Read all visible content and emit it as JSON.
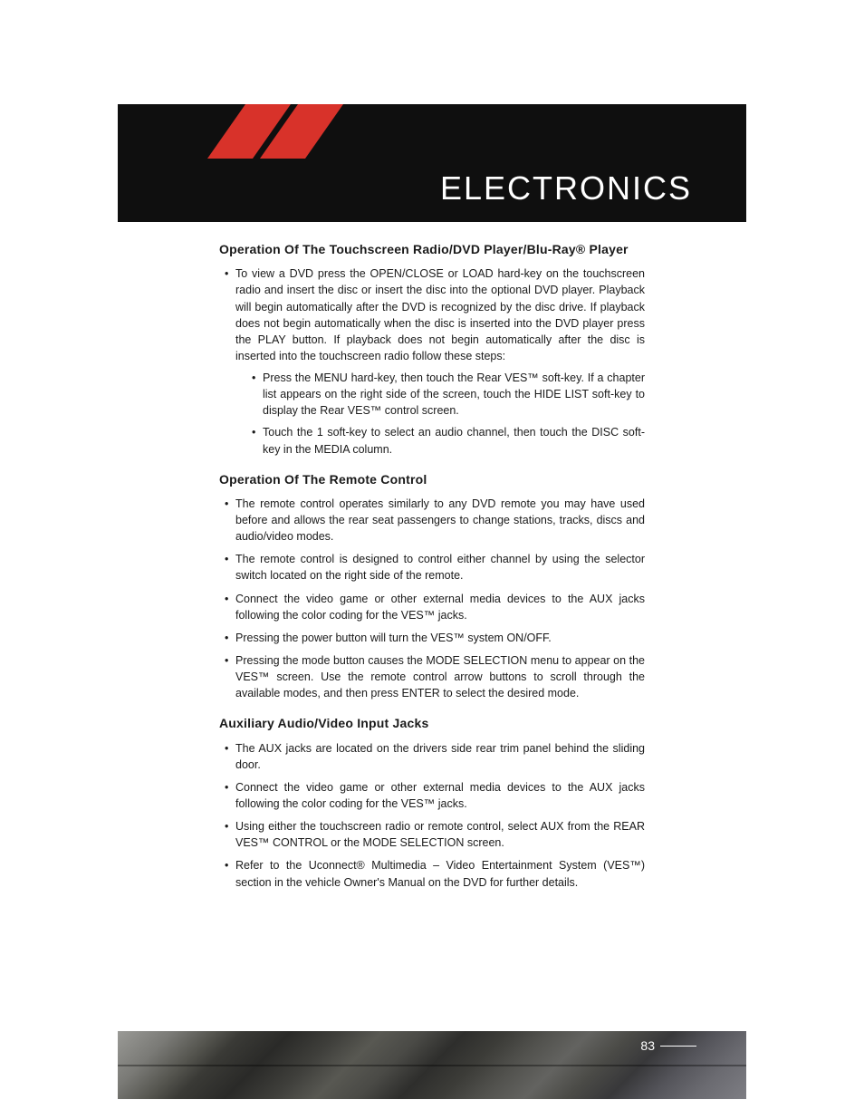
{
  "header": {
    "title": "ELECTRONICS",
    "accent_color": "#d8322a",
    "bg_color": "#0f0f0f",
    "title_color": "#ffffff",
    "title_fontsize": 36
  },
  "sections": [
    {
      "heading": "Operation Of The Touchscreen Radio/DVD Player/Blu-Ray® Player",
      "bullets": [
        {
          "text": "To view a DVD press the OPEN/CLOSE or LOAD hard-key on the touchscreen radio and insert the disc or insert the disc into the optional DVD player. Playback will begin automatically after the DVD is recognized by the disc drive. If playback does not begin automatically when the disc is inserted into the DVD player press the PLAY button. If playback does not begin automatically after the disc is inserted into the touchscreen radio follow these steps:",
          "sub": [
            "Press the MENU hard-key, then touch the Rear VES™ soft-key. If a chapter list appears on the right side of the screen, touch the HIDE LIST soft-key to display the Rear VES™ control screen.",
            "Touch the 1 soft-key to select an audio channel, then touch the DISC soft-key in the MEDIA column."
          ]
        }
      ]
    },
    {
      "heading": "Operation Of The Remote Control",
      "bullets": [
        {
          "text": "The remote control operates similarly to any DVD remote you may have used before and allows the rear seat passengers to change stations, tracks, discs and audio/video modes."
        },
        {
          "text": "The remote control is designed to control either channel by using the selector switch located on the right side of the remote."
        },
        {
          "text": "Connect the video game or other external media devices to the AUX jacks following the color coding for the VES™ jacks."
        },
        {
          "text": "Pressing the power button will turn the VES™ system ON/OFF."
        },
        {
          "text": "Pressing the mode button causes the MODE SELECTION menu to appear on the VES™ screen. Use the remote control arrow buttons to scroll through the available modes, and then press ENTER to select the desired mode."
        }
      ]
    },
    {
      "heading": "Auxiliary Audio/Video Input Jacks",
      "bullets": [
        {
          "text": "The AUX jacks are located on the drivers side rear trim panel behind the sliding door."
        },
        {
          "text": "Connect the video game or other external media devices to the AUX jacks following the color coding for the VES™ jacks."
        },
        {
          "text": "Using either the touchscreen radio or remote control, select AUX from the REAR VES™ CONTROL or the MODE SELECTION screen."
        },
        {
          "text": "Refer to the Uconnect® Multimedia – Video Entertainment System (VES™) section in the vehicle Owner's Manual on the DVD for further details."
        }
      ]
    }
  ],
  "footer": {
    "page_number": "83",
    "text_color": "#ffffff"
  },
  "typography": {
    "body_fontsize": 12.5,
    "heading_fontsize": 14,
    "text_color": "#1a1a1a",
    "font_family": "Arial"
  }
}
